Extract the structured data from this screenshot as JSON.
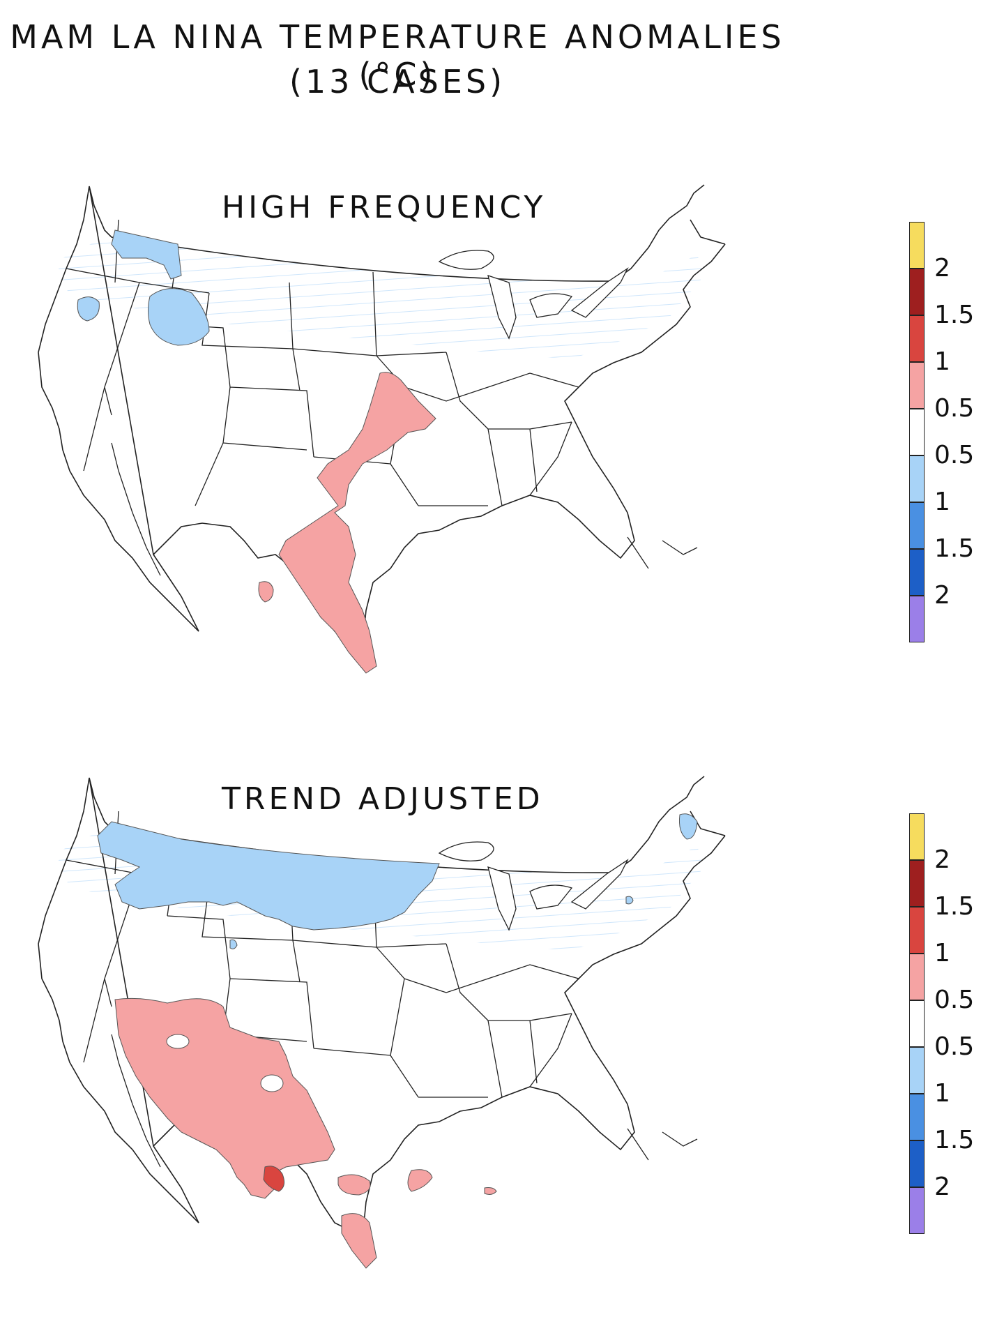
{
  "title": {
    "line1": "MAM LA NINA TEMPERATURE ANOMALIES (°C)",
    "line2": "(13 CASES)"
  },
  "panels": [
    {
      "title": "HIGH FREQUENCY"
    },
    {
      "title": "TREND ADJUSTED"
    }
  ],
  "colorbar": {
    "colors": [
      "#f6dc5e",
      "#9e1f1f",
      "#d9453f",
      "#f5a3a3",
      "#ffffff",
      "#a8d3f7",
      "#4a90e2",
      "#1d5fc7",
      "#9b7fe8"
    ],
    "labels": [
      "2",
      "1.5",
      "1",
      "0.5",
      "0.5",
      "1",
      "1.5",
      "2"
    ]
  },
  "legend_colors": {
    "warm_light": "#f5a3a3",
    "warm_dark": "#d9453f",
    "cool_light": "#a8d3f7"
  }
}
